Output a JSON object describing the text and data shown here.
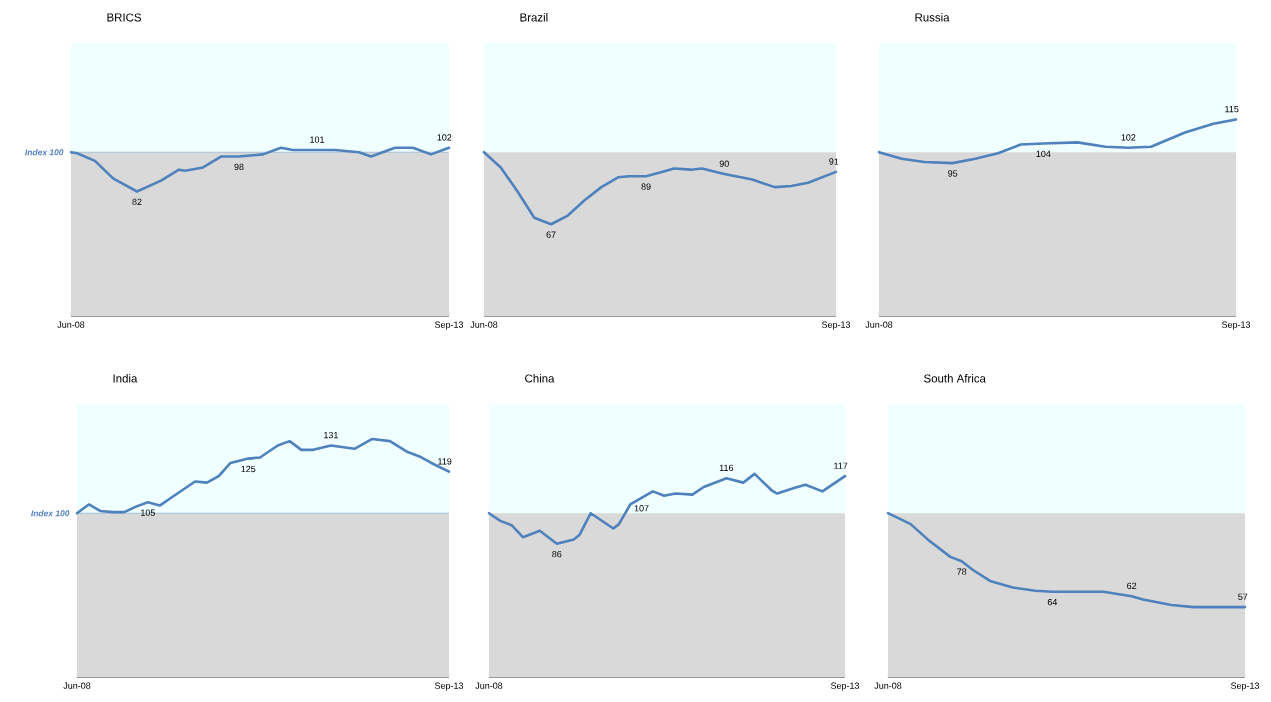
{
  "chart_data": [
    {
      "type": "line",
      "title": "BRICS",
      "xlim": [
        "2008-06",
        "2013-09"
      ],
      "xticks": [
        {
          "value": "2008-06",
          "label": "Jun-08"
        },
        {
          "value": "2013-09",
          "label": "Sep-13"
        }
      ],
      "bands": [
        {
          "axis": "y",
          "from": 100,
          "to": 150,
          "color": "#f0ffff"
        },
        {
          "axis": "y",
          "from": 25,
          "to": 100,
          "color": "#d9d9d9"
        }
      ],
      "ref_lines": [
        {
          "axis": "y",
          "value": 100,
          "label": "Index 100",
          "color": "#4f81bd"
        }
      ],
      "x": [
        "2008-06",
        "2008-07",
        "2008-10",
        "2009-01",
        "2009-05",
        "2009-09",
        "2009-12",
        "2010-01",
        "2010-04",
        "2010-07",
        "2010-10",
        "2011-02",
        "2011-05",
        "2011-07",
        "2011-11",
        "2012-02",
        "2012-06",
        "2012-08",
        "2012-12",
        "2013-03",
        "2013-06",
        "2013-09"
      ],
      "series": [
        {
          "color": "#4f81bd",
          "values": [
            100,
            99.5,
            96,
            88,
            82,
            87,
            92,
            91.5,
            93,
            98,
            98,
            99,
            102,
            101,
            101,
            101,
            100,
            98,
            102,
            102,
            99,
            102
          ],
          "value_labels": [
            null,
            null,
            null,
            null,
            "82",
            null,
            null,
            null,
            null,
            null,
            "98",
            null,
            null,
            null,
            "101",
            null,
            null,
            null,
            null,
            null,
            null,
            "102"
          ]
        }
      ]
    },
    {
      "type": "line",
      "title": "Brazil",
      "xlim": [
        "2008-06",
        "2013-09"
      ],
      "xticks": [
        {
          "value": "2008-06",
          "label": "Jun-08"
        },
        {
          "value": "2013-09",
          "label": "Sep-13"
        }
      ],
      "bands": [
        {
          "axis": "y",
          "from": 100,
          "to": 150,
          "color": "#f0ffff"
        },
        {
          "axis": "y",
          "from": 25,
          "to": 100,
          "color": "#d9d9d9"
        }
      ],
      "x": [
        "2008-06",
        "2008-09",
        "2008-12",
        "2009-03",
        "2009-06",
        "2009-09",
        "2009-12",
        "2010-03",
        "2010-06",
        "2010-08",
        "2010-11",
        "2011-02",
        "2011-04",
        "2011-07",
        "2011-09",
        "2012-01",
        "2012-06",
        "2012-10",
        "2013-01",
        "2013-04",
        "2013-09"
      ],
      "series": [
        {
          "color": "#4f81bd",
          "values": [
            100,
            93,
            82,
            70,
            67,
            71,
            78,
            84,
            88.5,
            89,
            89,
            91,
            92.5,
            92,
            92.5,
            90,
            87.5,
            84,
            84.5,
            86,
            91
          ],
          "value_labels": [
            null,
            null,
            null,
            null,
            "67",
            null,
            null,
            null,
            null,
            null,
            "89",
            null,
            null,
            null,
            null,
            "90",
            null,
            null,
            null,
            null,
            "91"
          ]
        }
      ]
    },
    {
      "type": "line",
      "title": "Russia",
      "xlim": [
        "2008-06",
        "2013-09"
      ],
      "xticks": [
        {
          "value": "2008-06",
          "label": "Jun-08"
        },
        {
          "value": "2013-09",
          "label": "Sep-13"
        }
      ],
      "bands": [
        {
          "axis": "y",
          "from": 100,
          "to": 150,
          "color": "#f0ffff"
        },
        {
          "axis": "y",
          "from": 25,
          "to": 100,
          "color": "#d9d9d9"
        }
      ],
      "x": [
        "2008-06",
        "2008-10",
        "2009-02",
        "2009-07",
        "2009-11",
        "2010-03",
        "2010-07",
        "2010-11",
        "2011-05",
        "2011-10",
        "2012-02",
        "2012-06",
        "2012-12",
        "2013-05",
        "2013-09"
      ],
      "series": [
        {
          "color": "#4f81bd",
          "values": [
            100,
            97,
            95.5,
            95,
            97,
            99.5,
            103.5,
            104,
            104.5,
            102.5,
            102,
            102.5,
            109,
            113,
            115
          ],
          "value_labels": [
            null,
            null,
            null,
            "95",
            null,
            null,
            null,
            "104",
            null,
            null,
            "102",
            null,
            null,
            null,
            "115"
          ]
        }
      ]
    },
    {
      "type": "line",
      "title": "India",
      "xlim": [
        "2008-06",
        "2013-09"
      ],
      "xticks": [
        {
          "value": "2008-06",
          "label": "Jun-08"
        },
        {
          "value": "2013-09",
          "label": "Sep-13"
        }
      ],
      "bands": [
        {
          "axis": "y",
          "from": 100,
          "to": 150,
          "color": "#f0ffff"
        },
        {
          "axis": "y",
          "from": 25,
          "to": 100,
          "color": "#d9d9d9"
        }
      ],
      "ref_lines": [
        {
          "axis": "y",
          "value": 100,
          "label": "Index 100",
          "color": "#4f81bd"
        }
      ],
      "x": [
        "2008-06",
        "2008-08",
        "2008-10",
        "2008-12",
        "2009-02",
        "2009-04",
        "2009-06",
        "2009-08",
        "2009-11",
        "2010-02",
        "2010-04",
        "2010-06",
        "2010-08",
        "2010-11",
        "2011-01",
        "2011-04",
        "2011-06",
        "2011-08",
        "2011-10",
        "2012-01",
        "2012-05",
        "2012-08",
        "2012-11",
        "2013-02",
        "2013-04",
        "2013-06",
        "2013-09"
      ],
      "series": [
        {
          "color": "#4f81bd",
          "values": [
            100,
            104,
            101,
            100.5,
            100.5,
            103,
            105,
            103.5,
            109,
            114.5,
            114,
            117,
            123,
            125,
            125.5,
            131,
            133,
            129,
            129,
            131,
            129.5,
            134,
            133,
            128,
            126,
            123,
            119
          ],
          "value_labels": [
            null,
            null,
            null,
            null,
            null,
            null,
            "105",
            null,
            null,
            null,
            null,
            null,
            null,
            "125",
            null,
            null,
            null,
            null,
            null,
            "131",
            null,
            null,
            null,
            null,
            null,
            null,
            "119"
          ]
        }
      ]
    },
    {
      "type": "line",
      "title": "China",
      "xlim": [
        "2008-06",
        "2013-09"
      ],
      "xticks": [
        {
          "value": "2008-06",
          "label": "Jun-08"
        },
        {
          "value": "2013-09",
          "label": "Sep-13"
        }
      ],
      "bands": [
        {
          "axis": "y",
          "from": 100,
          "to": 150,
          "color": "#f0ffff"
        },
        {
          "axis": "y",
          "from": 25,
          "to": 100,
          "color": "#d9d9d9"
        }
      ],
      "x": [
        "2008-06",
        "2008-08",
        "2008-10",
        "2008-12",
        "2009-03",
        "2009-06",
        "2009-09",
        "2009-10",
        "2009-12",
        "2010-04",
        "2010-05",
        "2010-07",
        "2010-09",
        "2010-11",
        "2011-01",
        "2011-03",
        "2011-06",
        "2011-08",
        "2011-11",
        "2011-12",
        "2012-03",
        "2012-05",
        "2012-08",
        "2012-09",
        "2012-12",
        "2013-02",
        "2013-05",
        "2013-09"
      ],
      "series": [
        {
          "color": "#4f81bd",
          "values": [
            100,
            96.5,
            94.5,
            89,
            92,
            86,
            88,
            90,
            100,
            93,
            95,
            104,
            107,
            110,
            108,
            109,
            108.5,
            112,
            115,
            116,
            114,
            118,
            110.5,
            109,
            111.5,
            113,
            110,
            117
          ],
          "value_labels": [
            null,
            null,
            null,
            null,
            null,
            "86",
            null,
            null,
            null,
            null,
            null,
            null,
            "107",
            null,
            null,
            null,
            null,
            null,
            null,
            "116",
            null,
            null,
            null,
            null,
            null,
            null,
            null,
            "117"
          ]
        }
      ]
    },
    {
      "type": "line",
      "title": "South Africa",
      "xlim": [
        "2008-06",
        "2013-09"
      ],
      "xticks": [
        {
          "value": "2008-06",
          "label": "Jun-08"
        },
        {
          "value": "2013-09",
          "label": "Sep-13"
        }
      ],
      "bands": [
        {
          "axis": "y",
          "from": 100,
          "to": 150,
          "color": "#f0ffff"
        },
        {
          "axis": "y",
          "from": 25,
          "to": 100,
          "color": "#d9d9d9"
        }
      ],
      "x": [
        "2008-06",
        "2008-10",
        "2009-01",
        "2009-05",
        "2009-07",
        "2009-09",
        "2009-12",
        "2010-04",
        "2010-08",
        "2010-11",
        "2011-03",
        "2011-08",
        "2012-01",
        "2012-03",
        "2012-08",
        "2012-12",
        "2013-09"
      ],
      "series": [
        {
          "color": "#4f81bd",
          "values": [
            100,
            95,
            88,
            80,
            78,
            74,
            69,
            66,
            64.5,
            64,
            64,
            64,
            62,
            60.5,
            58,
            57,
            57
          ],
          "value_labels": [
            null,
            null,
            null,
            null,
            "78",
            null,
            null,
            null,
            null,
            "64",
            null,
            null,
            "62",
            null,
            null,
            null,
            "57"
          ]
        }
      ]
    }
  ]
}
